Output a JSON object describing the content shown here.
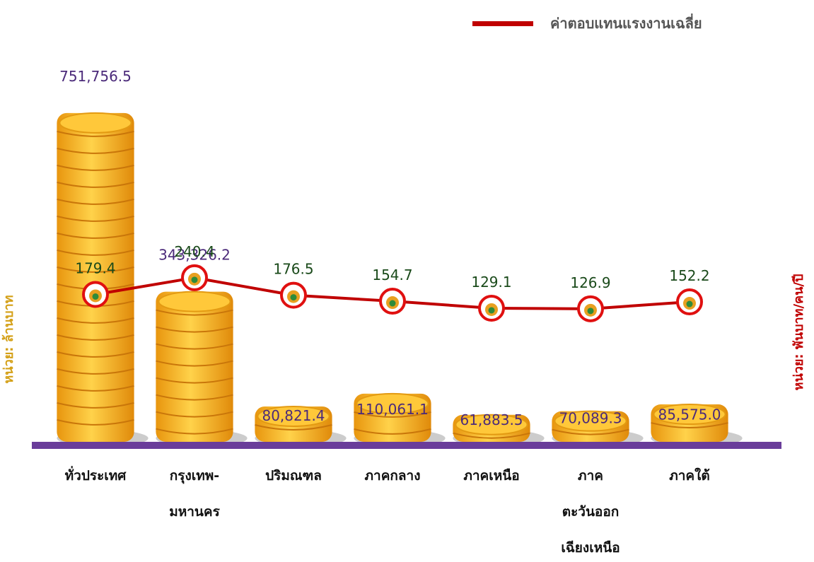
{
  "chart_data": {
    "type": "bar",
    "categories": [
      "ทั่วประเทศ",
      "กรุงเทพ-\nมหานคร",
      "ปริมณฑล",
      "ภาคกลาง",
      "ภาคเหนือ",
      "ภาค\nตะวันออก\nเฉียงเหนือ",
      "ภาคใต้"
    ],
    "values": [
      751756.5,
      343326.2,
      80821.4,
      110061.1,
      61883.5,
      70089.3,
      85575.0
    ],
    "value_labels": [
      "751,756.5",
      "343,326.2",
      "80,821.4",
      "110,061.1",
      "61,883.5",
      "70,089.3",
      "85,575.0"
    ],
    "color": "#f5b323",
    "ylim": [
      0,
      800000
    ],
    "ylabel": "หน่วย: ล้านบาท",
    "y2label": "หน่วย: พันบาท/คน/ปี",
    "y2lim": [
      0,
      400
    ],
    "line_series": [
      {
        "name": "ค่าตอบแทนแรงงานเฉลี่ย",
        "color": "#c00000",
        "axis": "y2",
        "values": [
          179.4,
          240.4,
          176.5,
          154.7,
          129.1,
          126.9,
          152.2
        ]
      }
    ],
    "legend": "top-right"
  }
}
